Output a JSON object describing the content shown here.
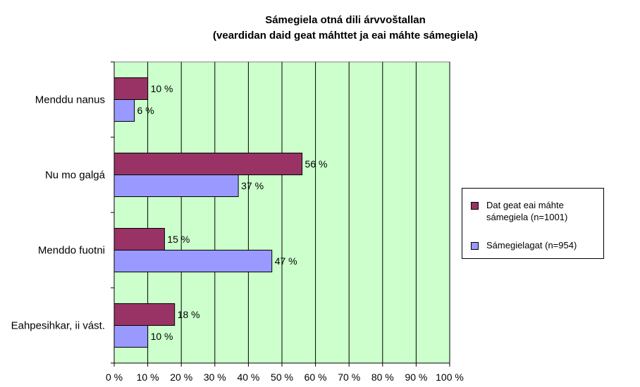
{
  "chart_data": {
    "type": "bar",
    "orientation": "horizontal",
    "title": "Sámegiela otná dili árvvoštallan",
    "subtitle": "(veardidan daid geat máhttet ja eai máhte sámegiela)",
    "categories": [
      "Menddu nanus",
      "Nu mo galgá",
      "Menddo fuotni",
      "Eahpesihkar, ii vást."
    ],
    "series": [
      {
        "name": "Dat geat eai máhte sámegiela (n=1001)",
        "color": "#993366",
        "values": [
          10,
          56,
          15,
          18
        ],
        "labels": [
          "10 %",
          "56 %",
          "15 %",
          "18 %"
        ]
      },
      {
        "name": "Sámegielagat (n=954)",
        "color": "#9999ff",
        "values": [
          6,
          37,
          47,
          10
        ],
        "labels": [
          "6 %",
          "37 %",
          "47 %",
          "10 %"
        ]
      }
    ],
    "xlim": [
      0,
      100
    ],
    "x_ticks": [
      "0 %",
      "10 %",
      "20 %",
      "30 %",
      "40 %",
      "50 %",
      "60 %",
      "70 %",
      "80 %",
      "90 %",
      "100 %"
    ],
    "plot_background": "#ccffcc",
    "grid": true,
    "legend_position": "right"
  }
}
